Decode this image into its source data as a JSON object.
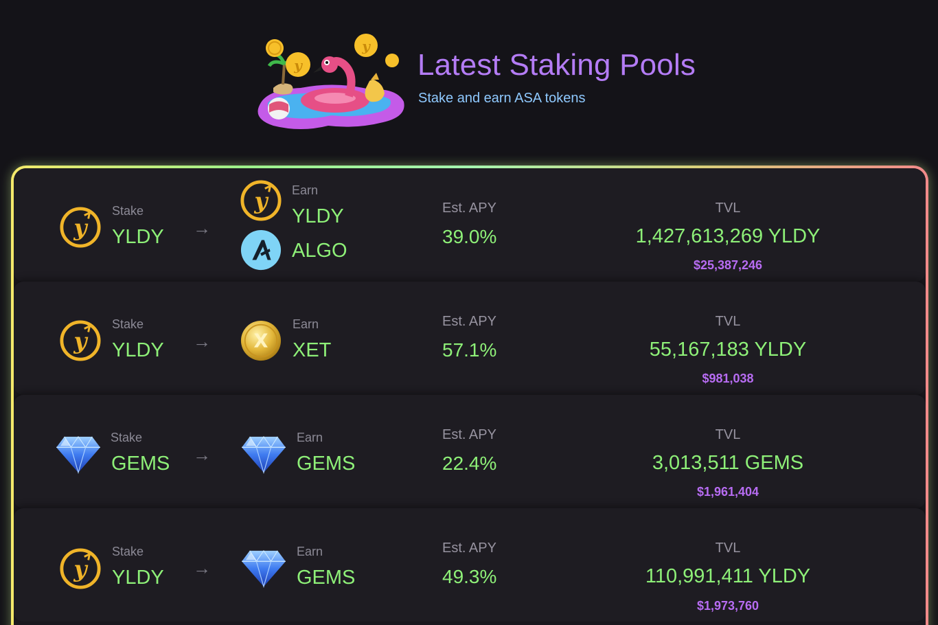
{
  "header": {
    "title": "Latest Staking Pools",
    "subtitle": "Stake and earn ASA tokens",
    "hero_icon": "flamingo-pool-illustration"
  },
  "colors": {
    "title": "#b47cf5",
    "subtitle": "#8fc9ff",
    "value_green": "#8ef078",
    "usd_purple": "#b76cf2",
    "background": "#141318"
  },
  "pools": [
    {
      "stake_label": "Stake",
      "stake_token": "YLDY",
      "stake_icon": "yldy-coin-icon",
      "earn_label": "Earn",
      "earn_tokens": [
        {
          "name": "YLDY",
          "icon": "yldy-coin-icon"
        },
        {
          "name": "ALGO",
          "icon": "algo-coin-icon"
        }
      ],
      "apy_label": "Est. APY",
      "apy": "39.0%",
      "tvl_label": "TVL",
      "tvl": "1,427,613,269 YLDY",
      "tvl_usd": "$25,387,246"
    },
    {
      "stake_label": "Stake",
      "stake_token": "YLDY",
      "stake_icon": "yldy-coin-icon",
      "earn_label": "Earn",
      "earn_tokens": [
        {
          "name": "XET",
          "icon": "xet-coin-icon"
        }
      ],
      "apy_label": "Est. APY",
      "apy": "57.1%",
      "tvl_label": "TVL",
      "tvl": "55,167,183 YLDY",
      "tvl_usd": "$981,038"
    },
    {
      "stake_label": "Stake",
      "stake_token": "GEMS",
      "stake_icon": "gem-icon",
      "earn_label": "Earn",
      "earn_tokens": [
        {
          "name": "GEMS",
          "icon": "gem-icon"
        }
      ],
      "apy_label": "Est. APY",
      "apy": "22.4%",
      "tvl_label": "TVL",
      "tvl": "3,013,511 GEMS",
      "tvl_usd": "$1,961,404"
    },
    {
      "stake_label": "Stake",
      "stake_token": "YLDY",
      "stake_icon": "yldy-coin-icon",
      "earn_label": "Earn",
      "earn_tokens": [
        {
          "name": "GEMS",
          "icon": "gem-icon"
        }
      ],
      "apy_label": "Est. APY",
      "apy": "49.3%",
      "tvl_label": "TVL",
      "tvl": "110,991,411 YLDY",
      "tvl_usd": "$1,973,760"
    }
  ],
  "arrow_glyph": "→"
}
